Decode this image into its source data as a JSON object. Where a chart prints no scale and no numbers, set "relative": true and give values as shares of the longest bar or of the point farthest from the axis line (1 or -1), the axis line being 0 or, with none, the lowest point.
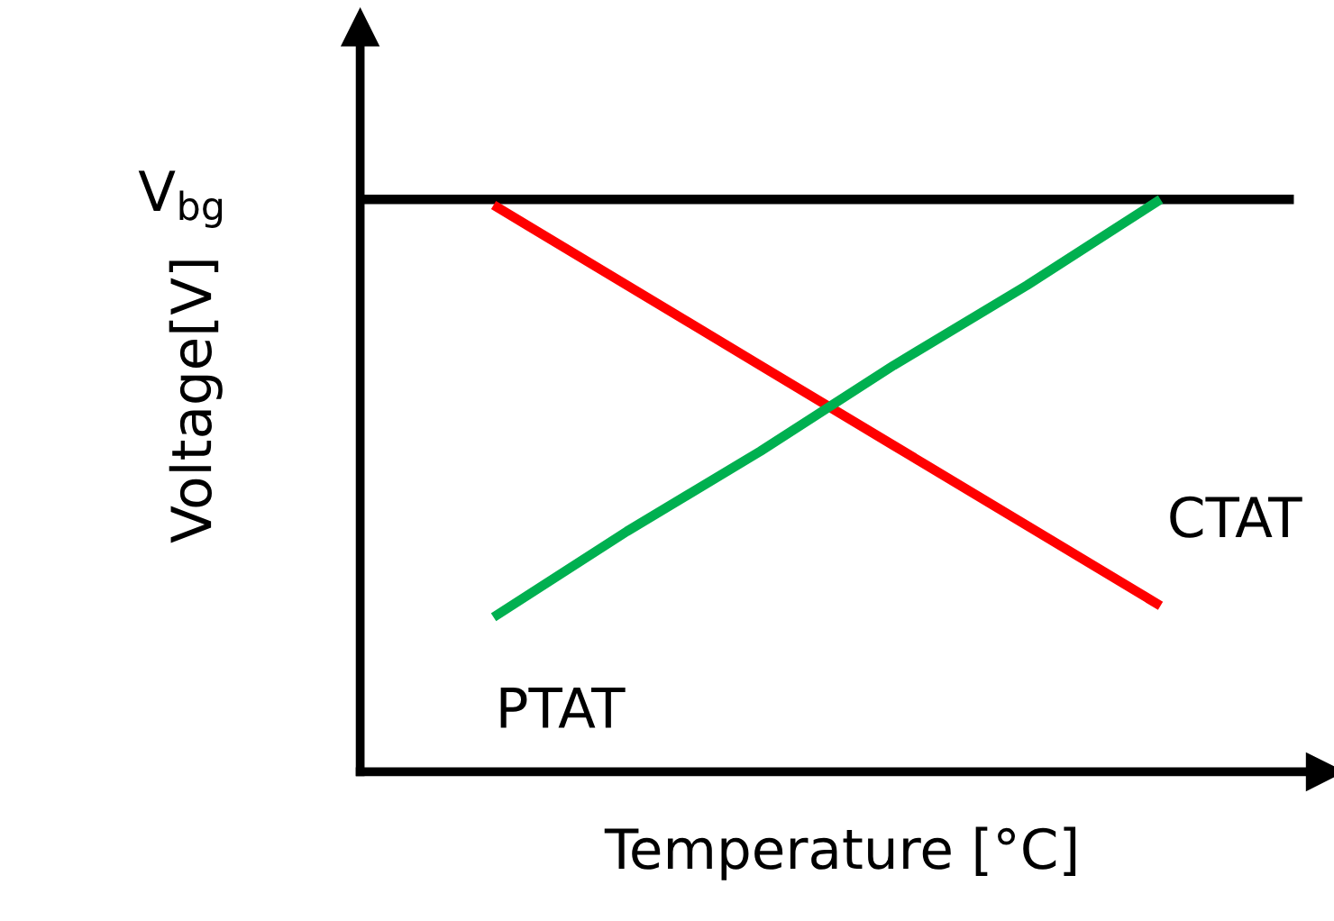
{
  "chart_data": {
    "type": "line",
    "relative": true,
    "xlabel": "Temperature [°C]",
    "ylabel": "Voltage[V]",
    "categories": [
      null,
      null,
      null,
      null,
      null,
      null,
      null,
      null
    ],
    "series": [
      {
        "name": "V$_{bg}$",
        "color": "#000000",
        "values": [
          1,
          1,
          1,
          1,
          1,
          1,
          1,
          1
        ]
      },
      {
        "name": "CTAT",
        "color": "#ff0000",
        "values": [
          null,
          0.99,
          0.85,
          0.71,
          0.57,
          0.43,
          0.29,
          null
        ]
      },
      {
        "name": "PTAT",
        "color": "#00b050",
        "values": [
          null,
          0.27,
          0.42,
          0.56,
          0.71,
          0.85,
          1.0,
          null
        ]
      }
    ],
    "legend": false,
    "marker": "none",
    "line_style": "solid"
  }
}
